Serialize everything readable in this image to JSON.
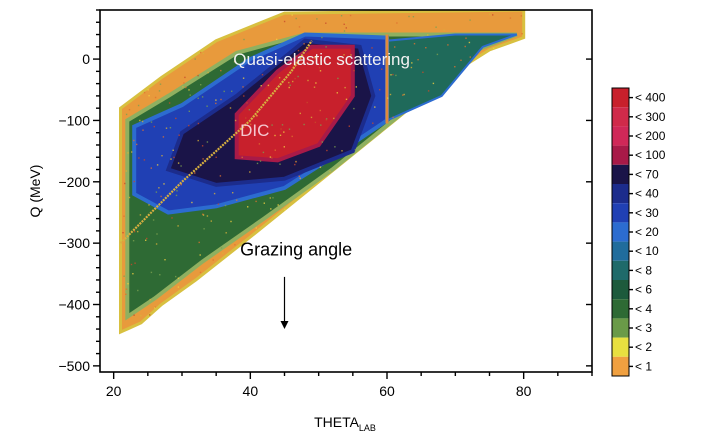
{
  "chart_data": {
    "type": "heatmap",
    "title": "",
    "xlabel_main": "THETA",
    "xlabel_sub": "LAB",
    "ylabel": "Q (MeV)",
    "xlim": [
      18,
      90
    ],
    "ylim": [
      -510,
      80
    ],
    "x_ticks": [
      20,
      40,
      60,
      80
    ],
    "y_ticks": [
      0,
      -100,
      -200,
      -300,
      -400,
      -500
    ],
    "y_tick_labels": [
      "0",
      "−100",
      "−200",
      "−300",
      "−400",
      "−500"
    ],
    "annotations": [
      {
        "text": "Quasi-elastic scattering",
        "x": 37.5,
        "y": -10,
        "color": "#f2f2f2"
      },
      {
        "text": "DIC",
        "x": 38.5,
        "y": -125,
        "color": "#f4c8cf"
      },
      {
        "text": "Grazing angle",
        "x": 38.5,
        "y": -320,
        "color": "#000000"
      }
    ],
    "arrow": {
      "x": 45,
      "y_from": -355,
      "y_to": -440
    },
    "colorbar": {
      "levels": [
        "< 400",
        "< 300",
        "< 200",
        "< 100",
        "< 70",
        "< 40",
        "< 30",
        "< 20",
        "< 10",
        "< 8",
        "< 6",
        "< 4",
        "< 3",
        "< 2",
        "< 1"
      ],
      "colors": [
        "#c8202c",
        "#d02a4a",
        "#d02858",
        "#a81a48",
        "#1a1448",
        "#1c2c8c",
        "#2040b4",
        "#2c6cd0",
        "#206c9c",
        "#1f6a6a",
        "#1d5a3c",
        "#2e6a34",
        "#6a9a48",
        "#e8e040",
        "#f0a040"
      ]
    },
    "regions": {
      "envelope": [
        [
          21,
          -445
        ],
        [
          21,
          -80
        ],
        [
          27,
          -30
        ],
        [
          35,
          30
        ],
        [
          45,
          75
        ],
        [
          80,
          80
        ],
        [
          80,
          35
        ],
        [
          75,
          15
        ],
        [
          70,
          -20
        ],
        [
          60,
          -110
        ],
        [
          50,
          -200
        ],
        [
          40,
          -290
        ],
        [
          32,
          -360
        ],
        [
          27,
          -400
        ],
        [
          24,
          -430
        ],
        [
          21,
          -445
        ]
      ],
      "green": [
        [
          22,
          -420
        ],
        [
          22,
          -100
        ],
        [
          28,
          -60
        ],
        [
          38,
          10
        ],
        [
          48,
          40
        ],
        [
          79,
          40
        ],
        [
          72,
          10
        ],
        [
          62,
          -90
        ],
        [
          52,
          -180
        ],
        [
          42,
          -260
        ],
        [
          33,
          -330
        ],
        [
          26,
          -390
        ],
        [
          22,
          -420
        ]
      ],
      "blue": [
        [
          23,
          -220
        ],
        [
          23,
          -110
        ],
        [
          30,
          -75
        ],
        [
          40,
          0
        ],
        [
          48,
          40
        ],
        [
          60,
          35
        ],
        [
          60,
          -100
        ],
        [
          52,
          -160
        ],
        [
          45,
          -210
        ],
        [
          35,
          -240
        ],
        [
          28,
          -250
        ],
        [
          23,
          -220
        ]
      ],
      "navy": [
        [
          28,
          -180
        ],
        [
          30,
          -120
        ],
        [
          38,
          -60
        ],
        [
          48,
          30
        ],
        [
          56,
          20
        ],
        [
          58,
          -60
        ],
        [
          55,
          -150
        ],
        [
          45,
          -195
        ],
        [
          35,
          -205
        ],
        [
          28,
          -180
        ]
      ],
      "red": [
        [
          38,
          -160
        ],
        [
          38,
          -90
        ],
        [
          44,
          -20
        ],
        [
          49,
          20
        ],
        [
          55,
          20
        ],
        [
          55,
          -60
        ],
        [
          50,
          -140
        ],
        [
          44,
          -165
        ],
        [
          38,
          -160
        ]
      ],
      "right_band": [
        [
          60,
          30
        ],
        [
          60,
          -100
        ],
        [
          68,
          -60
        ],
        [
          74,
          20
        ],
        [
          79,
          40
        ],
        [
          70,
          40
        ],
        [
          60,
          30
        ]
      ]
    },
    "grazing_line": [
      [
        21,
        -300
      ],
      [
        30,
        -200
      ],
      [
        40,
        -100
      ],
      [
        46,
        -20
      ],
      [
        49,
        30
      ]
    ],
    "vertical_streak": [
      [
        60,
        40
      ],
      [
        60,
        -105
      ]
    ]
  }
}
